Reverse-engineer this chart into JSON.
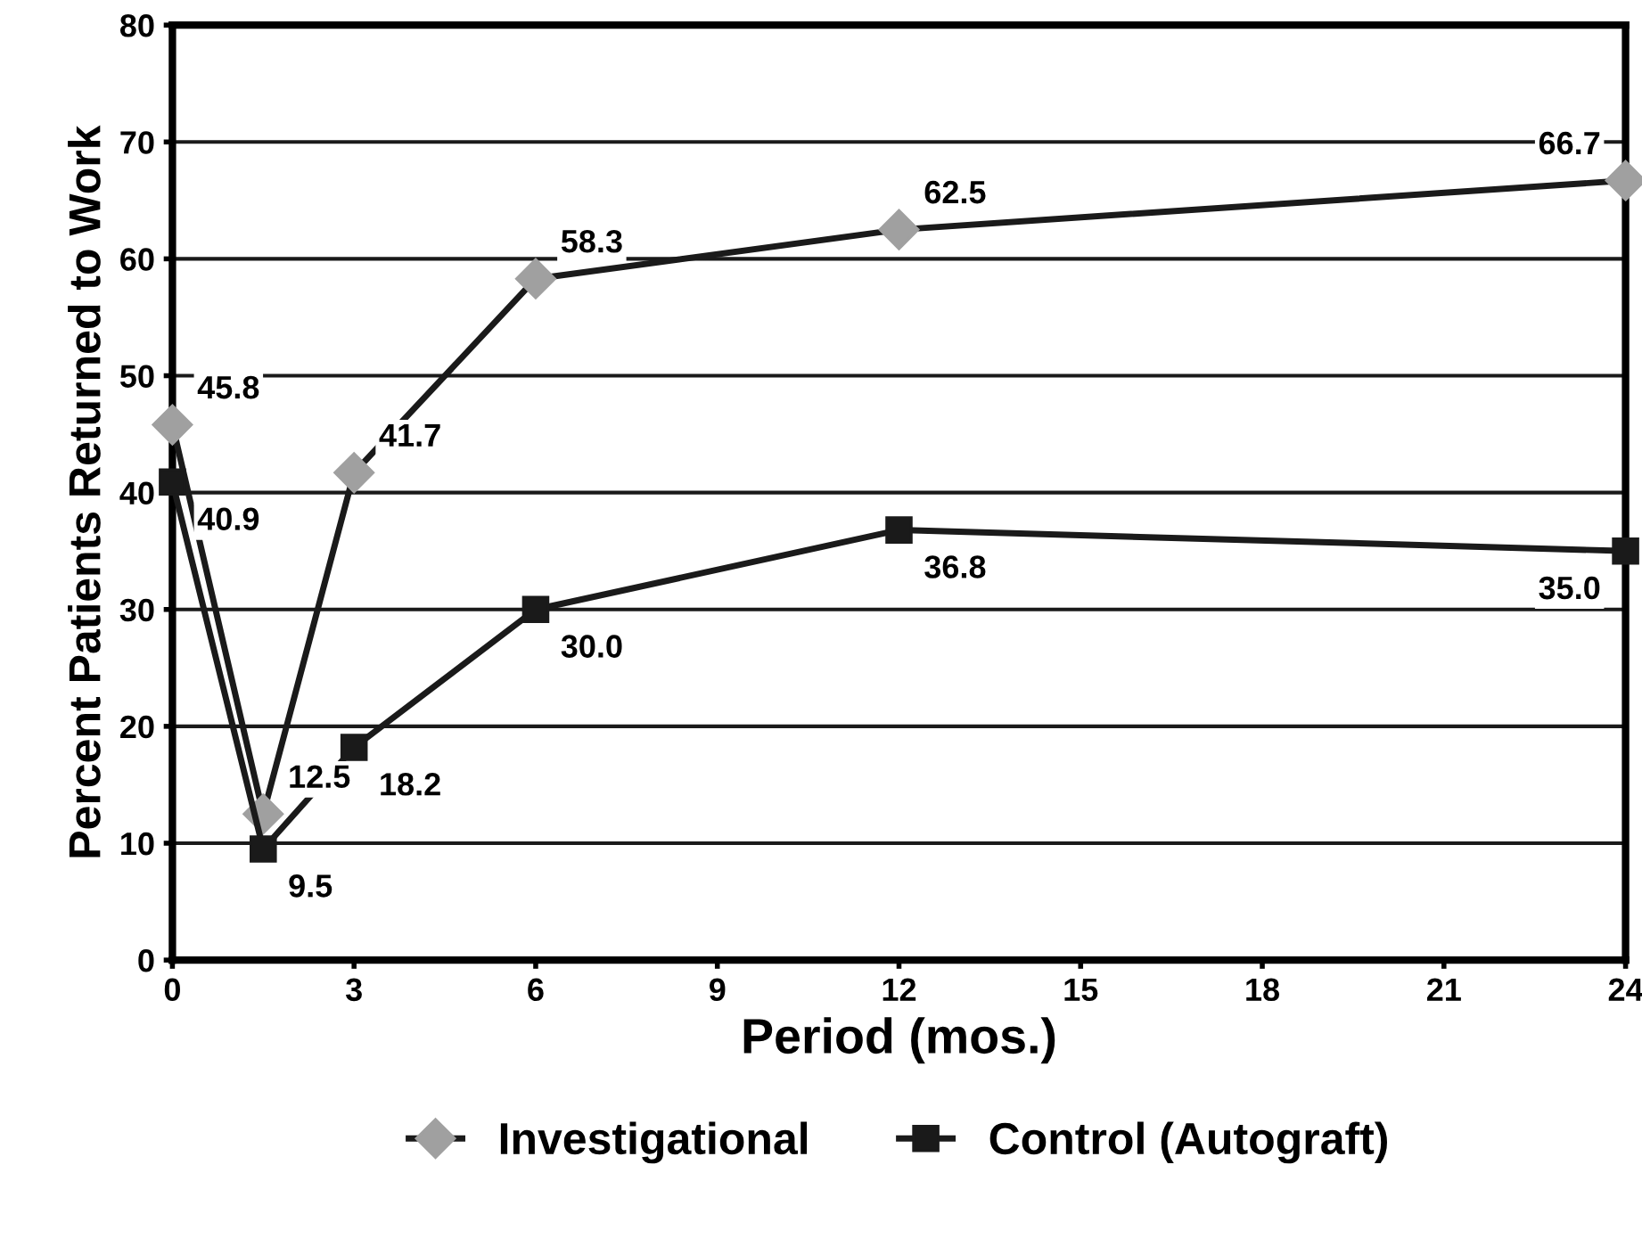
{
  "chart_data": {
    "type": "line",
    "xlabel": "Period (mos.)",
    "ylabel": "Percent Patients Returned to Work",
    "xlim": [
      0,
      24
    ],
    "xticks": [
      0,
      3,
      6,
      9,
      12,
      15,
      18,
      21,
      24
    ],
    "ylim": [
      0,
      80
    ],
    "yticks": [
      0,
      10,
      20,
      30,
      40,
      50,
      60,
      70,
      80
    ],
    "grid": "y",
    "legend": "bottom",
    "series": [
      {
        "name": "Investigational",
        "color": "#a0a0a0",
        "marker": "diamond",
        "x": [
          0,
          1.5,
          3,
          6,
          12,
          24
        ],
        "values": [
          45.8,
          12.5,
          41.7,
          58.3,
          62.5,
          66.7
        ],
        "value_labels": [
          "45.8",
          "12.5",
          "41.7",
          "58.3",
          "62.5",
          "66.7"
        ]
      },
      {
        "name": "Control (Autograft)",
        "color": "#1a1a1a",
        "marker": "square",
        "x": [
          0,
          1.5,
          3,
          6,
          12,
          24
        ],
        "values": [
          40.9,
          9.5,
          18.2,
          30.0,
          36.8,
          35.0
        ],
        "value_labels": [
          "40.9",
          "9.5",
          "18.2",
          "30.0",
          "36.8",
          "35.0"
        ]
      }
    ]
  }
}
